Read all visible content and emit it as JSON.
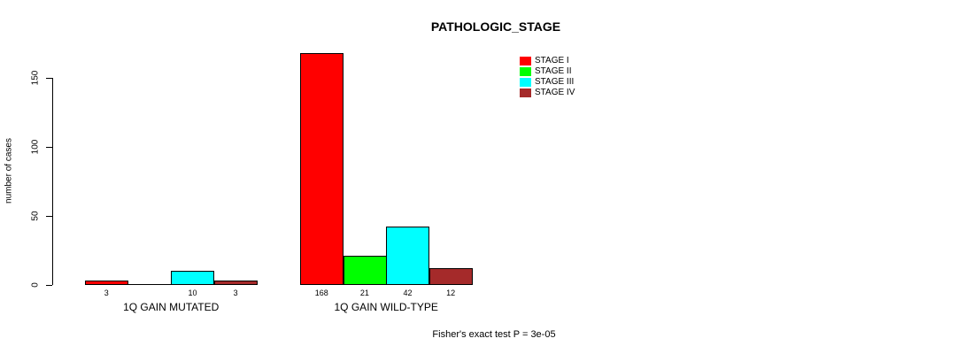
{
  "title": "PATHOLOGIC_STAGE",
  "footer": "Fisher's exact test P = 3e-05",
  "chart_data": {
    "type": "bar",
    "title": "PATHOLOGIC_STAGE",
    "xlabel": "",
    "ylabel": "number of cases",
    "categories": [
      "1Q GAIN MUTATED",
      "1Q GAIN WILD-TYPE"
    ],
    "series": [
      {
        "name": "STAGE I",
        "color": "#ff0000",
        "values": [
          3,
          168
        ]
      },
      {
        "name": "STAGE II",
        "color": "#00ff00",
        "values": [
          0,
          21
        ]
      },
      {
        "name": "STAGE III",
        "color": "#00ffff",
        "values": [
          10,
          42
        ]
      },
      {
        "name": "STAGE IV",
        "color": "#a52a2a",
        "values": [
          3,
          12
        ]
      }
    ],
    "bar_count_labels_shown_for_zero": false,
    "yticks": [
      0,
      50,
      100,
      150
    ],
    "ylim": [
      0,
      168
    ],
    "grid": false,
    "legend_position": "top-right",
    "annotation": "Fisher's exact test P = 3e-05"
  }
}
